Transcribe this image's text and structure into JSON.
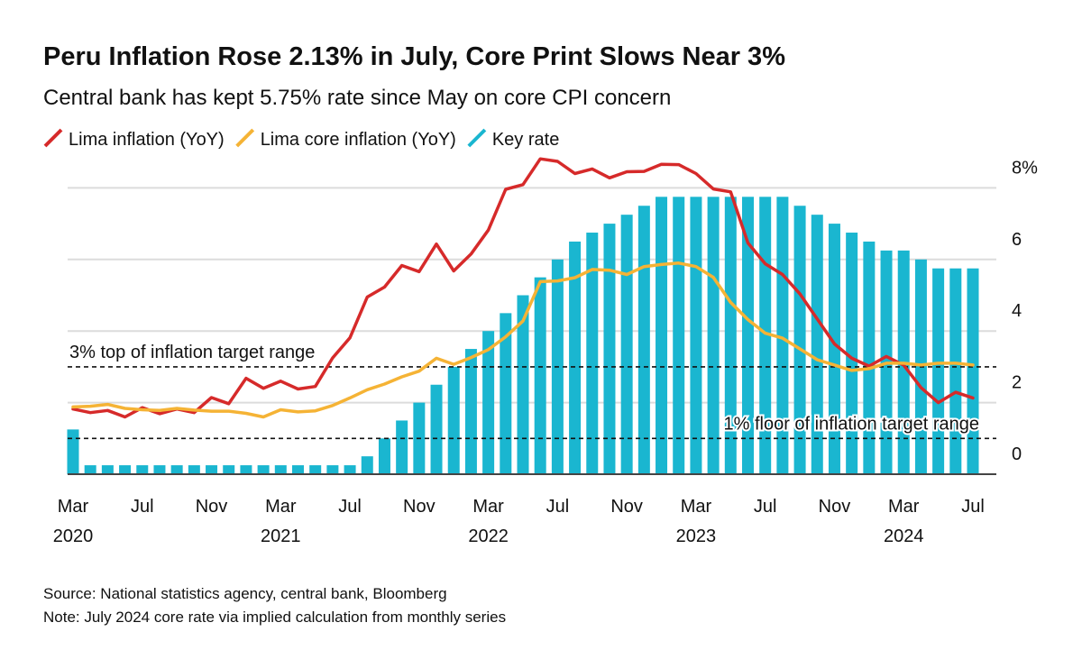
{
  "chart_data": {
    "type": "combo",
    "title": "Peru Inflation Rose 2.13% in July, Core Print Slows Near 3%",
    "subtitle": "Central bank has kept 5.75% rate since May on core CPI concern",
    "x": [
      "2020-03",
      "2020-04",
      "2020-05",
      "2020-06",
      "2020-07",
      "2020-08",
      "2020-09",
      "2020-10",
      "2020-11",
      "2020-12",
      "2021-01",
      "2021-02",
      "2021-03",
      "2021-04",
      "2021-05",
      "2021-06",
      "2021-07",
      "2021-08",
      "2021-09",
      "2021-10",
      "2021-11",
      "2021-12",
      "2022-01",
      "2022-02",
      "2022-03",
      "2022-04",
      "2022-05",
      "2022-06",
      "2022-07",
      "2022-08",
      "2022-09",
      "2022-10",
      "2022-11",
      "2022-12",
      "2023-01",
      "2023-02",
      "2023-03",
      "2023-04",
      "2023-05",
      "2023-06",
      "2023-07",
      "2023-08",
      "2023-09",
      "2023-10",
      "2023-11",
      "2023-12",
      "2024-01",
      "2024-02",
      "2024-03",
      "2024-04",
      "2024-05",
      "2024-06",
      "2024-07"
    ],
    "series": [
      {
        "name": "Lima inflation (YoY)",
        "type": "line",
        "color": "#d62a2a",
        "values": [
          1.82,
          1.72,
          1.78,
          1.6,
          1.86,
          1.69,
          1.82,
          1.72,
          2.14,
          1.97,
          2.68,
          2.4,
          2.6,
          2.38,
          2.45,
          3.25,
          3.81,
          4.95,
          5.23,
          5.83,
          5.66,
          6.43,
          5.68,
          6.15,
          6.82,
          7.96,
          8.09,
          8.81,
          8.74,
          8.4,
          8.53,
          8.28,
          8.45,
          8.46,
          8.66,
          8.65,
          8.4,
          7.97,
          7.89,
          6.46,
          5.88,
          5.58,
          5.04,
          4.34,
          3.64,
          3.24,
          3.02,
          3.29,
          3.05,
          2.42,
          2.0,
          2.29,
          2.13
        ]
      },
      {
        "name": "Lima core inflation (YoY)",
        "type": "line",
        "color": "#f5b335",
        "values": [
          1.88,
          1.9,
          1.95,
          1.84,
          1.8,
          1.78,
          1.84,
          1.79,
          1.76,
          1.76,
          1.7,
          1.6,
          1.8,
          1.74,
          1.77,
          1.92,
          2.13,
          2.36,
          2.52,
          2.72,
          2.88,
          3.24,
          3.07,
          3.26,
          3.48,
          3.84,
          4.28,
          5.38,
          5.4,
          5.49,
          5.72,
          5.7,
          5.58,
          5.8,
          5.86,
          5.9,
          5.8,
          5.5,
          4.8,
          4.32,
          3.94,
          3.8,
          3.5,
          3.2,
          3.05,
          2.9,
          2.95,
          3.1,
          3.1,
          3.05,
          3.1,
          3.1,
          3.05
        ]
      },
      {
        "name": "Key rate",
        "type": "bar",
        "color": "#1ab6d0",
        "values": [
          1.25,
          0.25,
          0.25,
          0.25,
          0.25,
          0.25,
          0.25,
          0.25,
          0.25,
          0.25,
          0.25,
          0.25,
          0.25,
          0.25,
          0.25,
          0.25,
          0.25,
          0.5,
          1.0,
          1.5,
          2.0,
          2.5,
          3.0,
          3.5,
          4.0,
          4.5,
          5.0,
          5.5,
          6.0,
          6.5,
          6.75,
          7.0,
          7.25,
          7.5,
          7.75,
          7.75,
          7.75,
          7.75,
          7.75,
          7.75,
          7.75,
          7.75,
          7.5,
          7.25,
          7.0,
          6.75,
          6.5,
          6.25,
          6.25,
          6.0,
          5.75,
          5.75,
          5.75
        ]
      }
    ],
    "ylim": [
      0,
      8.8
    ],
    "yticks": [
      0,
      2,
      4,
      6,
      {
        "value": 8,
        "label": "8%"
      }
    ],
    "grid": true,
    "xticks": [
      {
        "value": "2020-03",
        "label": "Mar"
      },
      {
        "value": "2020-07",
        "label": "Jul"
      },
      {
        "value": "2020-11",
        "label": "Nov"
      },
      {
        "value": "2021-03",
        "label": "Mar"
      },
      {
        "value": "2021-07",
        "label": "Jul"
      },
      {
        "value": "2021-11",
        "label": "Nov"
      },
      {
        "value": "2022-03",
        "label": "Mar"
      },
      {
        "value": "2022-07",
        "label": "Jul"
      },
      {
        "value": "2022-11",
        "label": "Nov"
      },
      {
        "value": "2023-03",
        "label": "Mar"
      },
      {
        "value": "2023-07",
        "label": "Jul"
      },
      {
        "value": "2023-11",
        "label": "Nov"
      },
      {
        "value": "2024-03",
        "label": "Mar"
      },
      {
        "value": "2024-07",
        "label": "Jul"
      }
    ],
    "xtick_years": [
      {
        "value": "2020-03",
        "label": "2020"
      },
      {
        "value": "2021-03",
        "label": "2021"
      },
      {
        "value": "2022-03",
        "label": "2022"
      },
      {
        "value": "2023-03",
        "label": "2023"
      },
      {
        "value": "2024-03",
        "label": "2024"
      }
    ],
    "reference_lines": [
      {
        "value": 3,
        "label": "3% top of inflation target range"
      },
      {
        "value": 1,
        "label": "1% floor of inflation target range"
      }
    ],
    "source": "Source: National statistics agency, central bank, Bloomberg",
    "note": "Note: July 2024 core rate via implied calculation from monthly series"
  }
}
